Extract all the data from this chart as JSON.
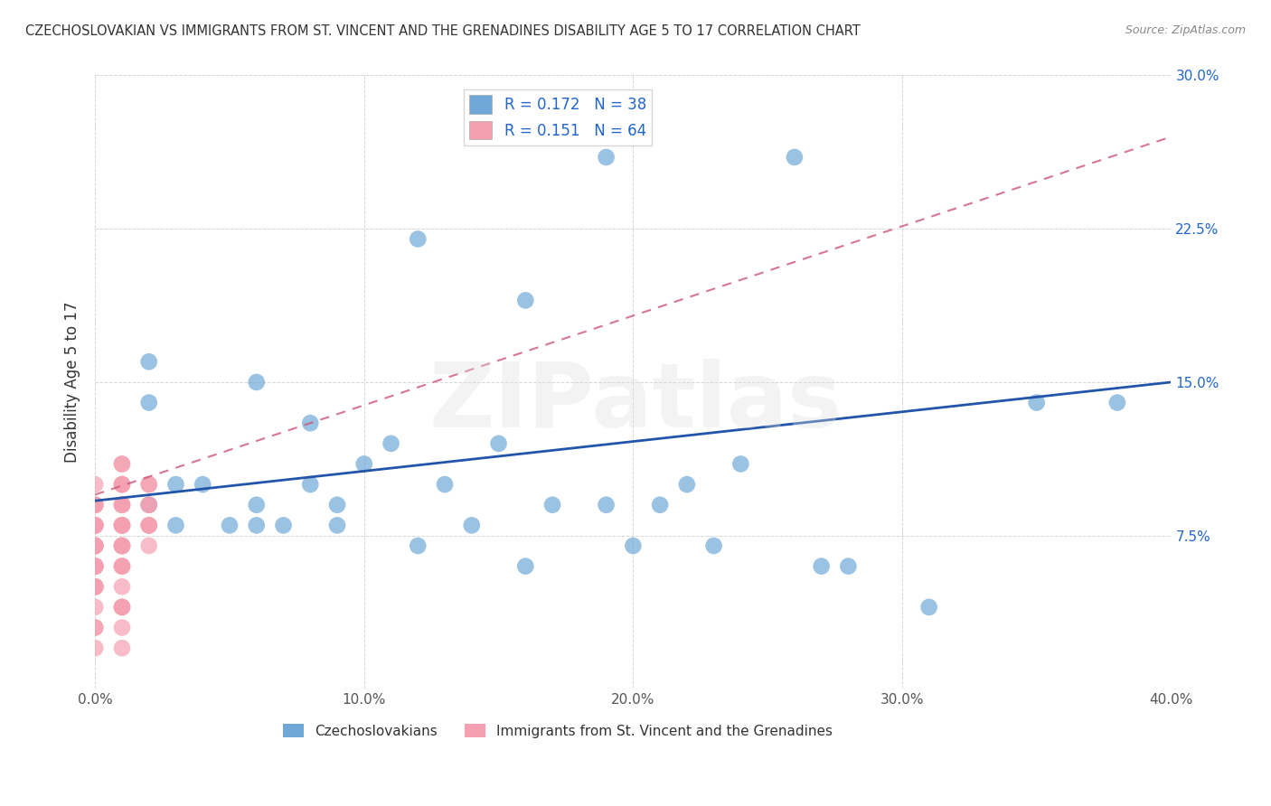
{
  "title": "CZECHOSLOVAKIAN VS IMMIGRANTS FROM ST. VINCENT AND THE GRENADINES DISABILITY AGE 5 TO 17 CORRELATION CHART",
  "source": "Source: ZipAtlas.com",
  "xlabel": "",
  "ylabel": "Disability Age 5 to 17",
  "xlim": [
    0.0,
    0.4
  ],
  "ylim": [
    0.0,
    0.3
  ],
  "xticks": [
    0.0,
    0.1,
    0.2,
    0.3,
    0.4
  ],
  "xtick_labels": [
    "0.0%",
    "10.0%",
    "20.0%",
    "30.0%",
    "40.0%"
  ],
  "yticks": [
    0.0,
    0.075,
    0.15,
    0.225,
    0.3
  ],
  "ytick_labels": [
    "",
    "7.5%",
    "15.0%",
    "22.5%",
    "30.0%"
  ],
  "blue_R": 0.172,
  "blue_N": 38,
  "pink_R": 0.151,
  "pink_N": 64,
  "blue_color": "#6fa8d6",
  "pink_color": "#f4a0b0",
  "blue_line_color": "#2255aa",
  "pink_line_color": "#cc5577",
  "watermark": "ZIPatlas",
  "legend_label_blue": "Czechoslovakians",
  "legend_label_pink": "Immigrants from St. Vincent and the Grenadines",
  "blue_scatter_x": [
    0.02,
    0.19,
    0.26,
    0.12,
    0.16,
    0.02,
    0.06,
    0.08,
    0.11,
    0.09,
    0.14,
    0.19,
    0.22,
    0.08,
    0.06,
    0.04,
    0.03,
    0.05,
    0.07,
    0.1,
    0.13,
    0.15,
    0.17,
    0.21,
    0.24,
    0.28,
    0.31,
    0.35,
    0.38,
    0.02,
    0.03,
    0.06,
    0.09,
    0.12,
    0.16,
    0.2,
    0.23,
    0.27
  ],
  "blue_scatter_y": [
    0.14,
    0.26,
    0.26,
    0.22,
    0.19,
    0.16,
    0.15,
    0.13,
    0.12,
    0.09,
    0.08,
    0.09,
    0.1,
    0.1,
    0.09,
    0.1,
    0.08,
    0.08,
    0.08,
    0.11,
    0.1,
    0.12,
    0.09,
    0.09,
    0.11,
    0.06,
    0.04,
    0.14,
    0.14,
    0.09,
    0.1,
    0.08,
    0.08,
    0.07,
    0.06,
    0.07,
    0.07,
    0.06
  ],
  "pink_scatter_x": [
    0.0,
    0.01,
    0.0,
    0.01,
    0.01,
    0.0,
    0.02,
    0.01,
    0.0,
    0.01,
    0.02,
    0.01,
    0.0,
    0.01,
    0.02,
    0.0,
    0.01,
    0.0,
    0.0,
    0.01,
    0.0,
    0.0,
    0.01,
    0.0,
    0.01,
    0.02,
    0.01,
    0.0,
    0.0,
    0.01,
    0.02,
    0.0,
    0.01,
    0.0,
    0.0,
    0.01,
    0.0,
    0.02,
    0.01,
    0.0,
    0.0,
    0.01,
    0.0,
    0.0,
    0.01,
    0.0,
    0.0,
    0.01,
    0.0,
    0.01,
    0.0,
    0.02,
    0.0,
    0.01,
    0.01,
    0.0,
    0.01,
    0.02,
    0.0,
    0.01,
    0.0,
    0.01,
    0.0,
    0.0
  ],
  "pink_scatter_y": [
    0.1,
    0.11,
    0.09,
    0.1,
    0.08,
    0.09,
    0.1,
    0.08,
    0.07,
    0.09,
    0.08,
    0.07,
    0.06,
    0.07,
    0.09,
    0.08,
    0.1,
    0.06,
    0.07,
    0.08,
    0.05,
    0.06,
    0.07,
    0.08,
    0.09,
    0.1,
    0.08,
    0.09,
    0.07,
    0.11,
    0.09,
    0.08,
    0.1,
    0.07,
    0.06,
    0.09,
    0.05,
    0.08,
    0.06,
    0.07,
    0.04,
    0.05,
    0.06,
    0.08,
    0.07,
    0.09,
    0.03,
    0.04,
    0.05,
    0.06,
    0.07,
    0.08,
    0.02,
    0.03,
    0.04,
    0.05,
    0.06,
    0.07,
    0.08,
    0.02,
    0.03,
    0.04,
    0.05,
    0.06
  ],
  "blue_line_x": [
    0.0,
    0.4
  ],
  "blue_line_y": [
    0.092,
    0.15
  ],
  "pink_line_x": [
    0.0,
    0.4
  ],
  "pink_line_y": [
    0.095,
    0.27
  ]
}
